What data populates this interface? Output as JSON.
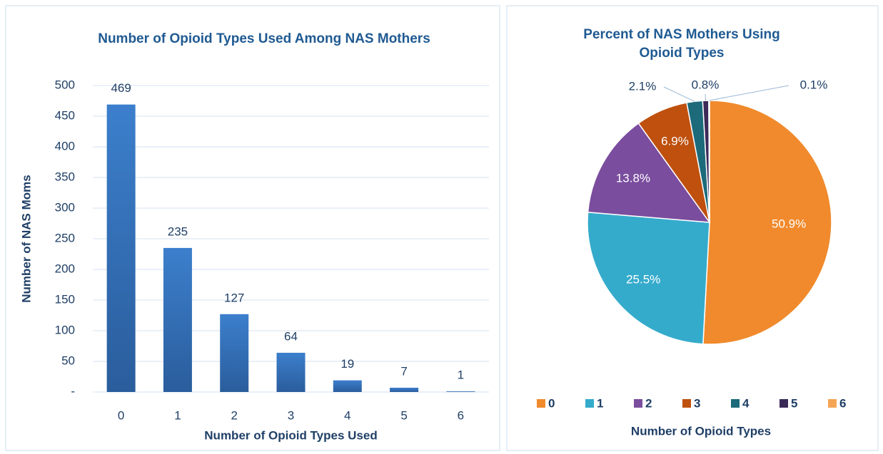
{
  "chart_data": [
    {
      "type": "bar",
      "title": "Number of Opioid Types Used Among  NAS Mothers",
      "xlabel": "Number of Opioid Types Used",
      "ylabel": "Number of NAS Moms",
      "categories": [
        "0",
        "1",
        "2",
        "3",
        "4",
        "5",
        "6"
      ],
      "values": [
        469,
        235,
        127,
        64,
        19,
        7,
        1
      ],
      "color": "#3a78c0",
      "ylim": [
        0,
        500
      ],
      "yticks": [
        {
          "value": 0,
          "label": "-"
        },
        50,
        100,
        150,
        200,
        250,
        300,
        350,
        400,
        450,
        500
      ],
      "grid": true
    },
    {
      "type": "pie",
      "title": "Percent of NAS Mothers Using Opioid Types",
      "legend_title": "Number of Opioid Types",
      "categories": [
        "0",
        "1",
        "2",
        "3",
        "4",
        "5",
        "6"
      ],
      "values": [
        50.9,
        25.5,
        13.8,
        6.9,
        2.1,
        0.8,
        0.1
      ],
      "value_labels": [
        "50.9%",
        "25.5%",
        "13.8%",
        "6.9%",
        "2.1%",
        "0.8%",
        "0.1%"
      ],
      "colors": [
        "#f08a2c",
        "#35abcc",
        "#7a4d9e",
        "#bf500e",
        "#1c6a7a",
        "#3b2a58",
        "#f5a556"
      ],
      "legend": "bottom"
    }
  ]
}
